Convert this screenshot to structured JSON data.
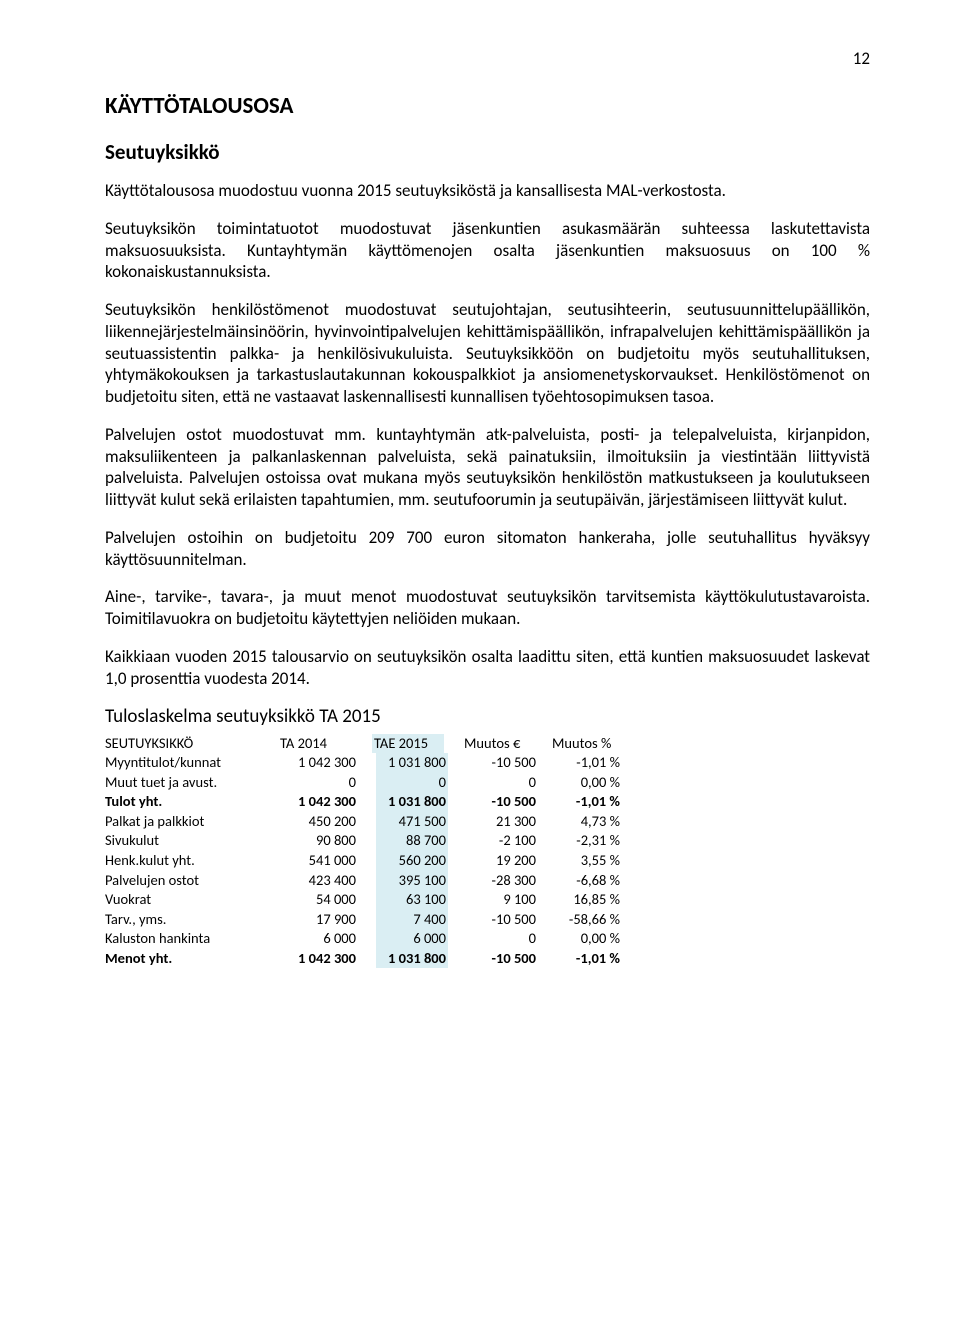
{
  "page_number": "12",
  "title": "KÄYTTÖTALOUSOSA",
  "subtitle": "Seutuyksikkö",
  "paragraphs": {
    "p1": "Käyttötalousosa muodostuu vuonna 2015 seutuyksiköstä ja kansallisesta MAL-verkostosta.",
    "p2": "Seutuyksikön toimintatuotot muodostuvat jäsenkuntien asukasmäärän suhteessa laskutettavista maksuosuuksista. Kuntayhtymän käyttömenojen osalta jäsenkuntien maksuosuus on 100 % kokonaiskustannuksista.",
    "p3": "Seutuyksikön henkilöstömenot muodostuvat seutujohtajan, seutusihteerin, seutusuunnittelupäällikön, liikennejärjestelmäinsinöörin, hyvinvointipalvelujen kehittämispäällikön, infrapalvelujen kehittämispäällikön ja seutuassistentin palkka- ja henkilösivukuluista. Seutuyksikköön on budjetoitu myös seutuhallituksen, yhtymäkokouksen ja tarkastuslautakunnan kokouspalkkiot ja ansiomenetyskorvaukset. Henkilöstömenot on budjetoitu siten, että ne vastaavat laskennallisesti kunnallisen työehtosopimuksen tasoa.",
    "p4": "Palvelujen ostot muodostuvat mm. kuntayhtymän atk-palveluista, posti- ja telepalveluista, kirjanpidon, maksuliikenteen ja palkanlaskennan palveluista, sekä painatuksiin, ilmoituksiin ja viestintään liittyvistä palveluista. Palvelujen ostoissa ovat mukana myös seutuyksikön henkilöstön matkustukseen ja koulutukseen liittyvät kulut sekä erilaisten tapahtumien, mm. seutufoorumin ja seutupäivän, järjestämiseen liittyvät kulut.",
    "p5": "Palvelujen ostoihin on budjetoitu 209 700 euron sitomaton hankeraha, jolle seutuhallitus hyväksyy käyttösuunnitelman.",
    "p6": "Aine-, tarvike-, tavara-, ja muut menot muodostuvat seutuyksikön tarvitsemista käyttökulutustavaroista. Toimitilavuokra on budjetoitu käytettyjen neliöiden mukaan.",
    "p7": "Kaikkiaan vuoden 2015 talousarvio on seutuyksikön osalta laadittu siten, että kuntien maksuosuudet laskevat 1,0 prosenttia vuodesta 2014."
  },
  "table": {
    "title": "Tuloslaskelma seutuyksikkö TA 2015",
    "highlight_color": "#daeef3",
    "headers": {
      "label": "SEUTUYKSIKKÖ",
      "ta2014": "TA 2014",
      "tae2015": "TAE 2015",
      "muutos_e": "Muutos €",
      "muutos_pct": "Muutos %"
    },
    "rows": [
      {
        "label": "Myyntitulot/kunnat",
        "ta2014": "1 042 300",
        "tae2015": "1 031 800",
        "muutos_e": "-10 500",
        "muutos_pct": "-1,01 %",
        "bold": false
      },
      {
        "label": "Muut tuet ja avust.",
        "ta2014": "0",
        "tae2015": "0",
        "muutos_e": "0",
        "muutos_pct": "0,00 %",
        "bold": false
      },
      {
        "label": "Tulot yht.",
        "ta2014": "1 042 300",
        "tae2015": "1 031 800",
        "muutos_e": "-10 500",
        "muutos_pct": "-1,01 %",
        "bold": true
      },
      {
        "label": "Palkat ja palkkiot",
        "ta2014": "450 200",
        "tae2015": "471 500",
        "muutos_e": "21 300",
        "muutos_pct": "4,73 %",
        "bold": false
      },
      {
        "label": "Sivukulut",
        "ta2014": "90 800",
        "tae2015": "88 700",
        "muutos_e": "-2 100",
        "muutos_pct": "-2,31 %",
        "bold": false
      },
      {
        "label": "Henk.kulut yht.",
        "ta2014": "541 000",
        "tae2015": "560 200",
        "muutos_e": "19 200",
        "muutos_pct": "3,55 %",
        "bold": false
      },
      {
        "label": "Palvelujen ostot",
        "ta2014": "423 400",
        "tae2015": "395 100",
        "muutos_e": "-28 300",
        "muutos_pct": "-6,68 %",
        "bold": false
      },
      {
        "label": "Vuokrat",
        "ta2014": "54 000",
        "tae2015": "63 100",
        "muutos_e": "9 100",
        "muutos_pct": "16,85 %",
        "bold": false
      },
      {
        "label": "Tarv., yms.",
        "ta2014": "17 900",
        "tae2015": "7 400",
        "muutos_e": "-10 500",
        "muutos_pct": "-58,66 %",
        "bold": false
      },
      {
        "label": "Kaluston hankinta",
        "ta2014": "6 000",
        "tae2015": "6 000",
        "muutos_e": "0",
        "muutos_pct": "0,00 %",
        "bold": false
      },
      {
        "label": "Menot yht.",
        "ta2014": "1 042 300",
        "tae2015": "1 031 800",
        "muutos_e": "-10 500",
        "muutos_pct": "-1,01 %",
        "bold": true
      }
    ]
  }
}
